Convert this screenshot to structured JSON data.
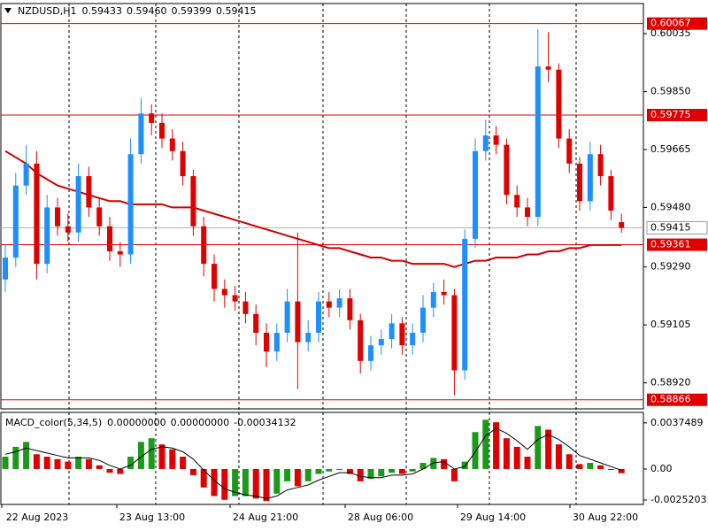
{
  "chart_data": {
    "type": "candlestick",
    "symbol": "NZDUSD,H1",
    "readout": [
      0.59433,
      {
        "value": 0.5946,
        "label": "0.59460"
      },
      0.59399,
      0.59415
    ],
    "up_color": "#1e8fff",
    "down_color": "#e00000",
    "open": [
      0.5925,
      0.5932,
      0.5955,
      0.5962,
      0.593,
      0.5948,
      0.5942,
      0.594,
      0.5958,
      0.5948,
      0.5942,
      0.5934,
      0.5933,
      0.5965,
      0.5978,
      0.5975,
      0.597,
      0.5966,
      0.5958,
      0.5942,
      0.593,
      0.5922,
      0.592,
      0.5918,
      0.5914,
      0.5908,
      0.5902,
      0.5908,
      0.5918,
      0.5905,
      0.5908,
      0.5918,
      0.5916,
      0.5919,
      0.5912,
      0.5899,
      0.5904,
      0.5906,
      0.5911,
      0.5904,
      0.5908,
      0.5916,
      0.5921,
      0.592,
      0.5896,
      0.5938,
      0.5966,
      0.5971,
      0.5968,
      0.5952,
      0.5948,
      0.5945,
      0.5993,
      0.5992,
      0.597,
      0.5962,
      0.595,
      0.5965,
      0.5958,
      0.59433
    ],
    "high": [
      0.5936,
      0.5959,
      0.5968,
      0.5966,
      0.5952,
      0.5951,
      0.5946,
      0.5962,
      0.5961,
      0.5951,
      0.5945,
      0.5937,
      0.597,
      0.5983,
      0.5981,
      0.5978,
      0.5973,
      0.5969,
      0.596,
      0.5945,
      0.5933,
      0.5925,
      0.5923,
      0.5921,
      0.5917,
      0.5911,
      0.5911,
      0.5922,
      0.594,
      0.5912,
      0.5921,
      0.5921,
      0.5922,
      0.5922,
      0.5914,
      0.5907,
      0.5909,
      0.5914,
      0.5913,
      0.5911,
      0.592,
      0.5924,
      0.5925,
      0.5922,
      0.5941,
      0.597,
      0.5976,
      0.5974,
      0.597,
      0.5955,
      0.5951,
      0.6005,
      0.6004,
      0.5994,
      0.5973,
      0.5964,
      0.5969,
      0.5968,
      0.596,
      0.5946
    ],
    "low": [
      0.5921,
      0.5929,
      0.5952,
      0.5925,
      0.5927,
      0.5939,
      0.5937,
      0.5937,
      0.5945,
      0.5939,
      0.5931,
      0.5929,
      0.593,
      0.5962,
      0.5971,
      0.5967,
      0.5963,
      0.5955,
      0.5939,
      0.5926,
      0.5918,
      0.5916,
      0.5915,
      0.5911,
      0.5904,
      0.5897,
      0.5899,
      0.5905,
      0.589,
      0.5902,
      0.5905,
      0.5913,
      0.5913,
      0.5909,
      0.5895,
      0.5896,
      0.5901,
      0.5903,
      0.5901,
      0.5901,
      0.5905,
      0.5913,
      0.5917,
      0.5888,
      0.5893,
      0.5935,
      0.5963,
      0.5965,
      0.5949,
      0.5945,
      0.5942,
      0.5942,
      0.5988,
      0.5967,
      0.5959,
      0.5947,
      0.5947,
      0.5955,
      0.5944,
      0.59399
    ],
    "close": [
      0.5932,
      0.5955,
      0.5962,
      0.593,
      0.5948,
      0.5942,
      0.594,
      0.5958,
      0.5948,
      0.5942,
      0.5934,
      0.5933,
      0.5965,
      0.5978,
      0.5975,
      0.597,
      0.5966,
      0.5958,
      0.5942,
      0.593,
      0.5922,
      0.592,
      0.5918,
      0.5914,
      0.5908,
      0.5902,
      0.5908,
      0.5918,
      0.5905,
      0.5908,
      0.5918,
      0.5916,
      0.5919,
      0.5912,
      0.5899,
      0.5904,
      0.5906,
      0.5911,
      0.5904,
      0.5908,
      0.5916,
      0.5921,
      0.592,
      0.5896,
      0.5938,
      0.5966,
      0.5971,
      0.5968,
      0.5952,
      0.5948,
      0.5945,
      0.5993,
      0.5992,
      0.597,
      0.5962,
      0.595,
      0.5965,
      0.5958,
      0.5947,
      0.59415
    ],
    "ma": {
      "color": "#d00000",
      "values": [
        0.5966,
        0.5964,
        0.5962,
        0.5959,
        0.5957,
        0.5955,
        0.5954,
        0.5953,
        0.5952,
        0.5951,
        0.595,
        0.595,
        0.5949,
        0.5949,
        0.5949,
        0.5949,
        0.5948,
        0.5948,
        0.5948,
        0.5947,
        0.5946,
        0.5945,
        0.5944,
        0.5943,
        0.5942,
        0.5941,
        0.594,
        0.5939,
        0.5938,
        0.5937,
        0.5936,
        0.5935,
        0.5935,
        0.5934,
        0.5933,
        0.5932,
        0.5932,
        0.5931,
        0.5931,
        0.593,
        0.593,
        0.593,
        0.593,
        0.5929,
        0.593,
        0.5931,
        0.5931,
        0.5932,
        0.5932,
        0.5932,
        0.5933,
        0.5933,
        0.5934,
        0.5934,
        0.5935,
        0.5935,
        0.5936,
        0.5936,
        0.5936,
        0.5936
      ]
    },
    "levels": [
      0.60067,
      0.59775,
      0.59361,
      0.58866
    ],
    "level_color": "#e00000",
    "ylim": [
      0.58837,
      0.60131
    ],
    "yticks": [
      0.60035,
      {
        "value": 0.5985,
        "label": "0.59850"
      },
      0.59665,
      {
        "value": 0.5948,
        "label": "0.59480"
      },
      {
        "value": 0.5929,
        "label": "0.59290"
      },
      0.59105,
      {
        "value": 0.5892,
        "label": "0.58920"
      }
    ],
    "x_labels": [
      "22 Aug 2023",
      "23 Aug 13:00",
      "24 Aug 21:00",
      "28 Aug 06:00",
      "29 Aug 14:00",
      "30 Aug 22:00"
    ],
    "macd": {
      "title": "MACD_color(5,34,5)",
      "readout": [
        {
          "value": 0,
          "label": "0.00000000"
        },
        {
          "value": 0,
          "label": "0.00000000"
        },
        -0.00034132
      ],
      "up_color": "#1a9a1a",
      "down_color": "#e00000",
      "signal_color": "#000000",
      "histogram": [
        0.001,
        0.0018,
        0.0022,
        0.0012,
        0.001,
        0.0008,
        0.0006,
        0.001,
        0.0008,
        0.0003,
        -0.0003,
        -0.0004,
        0.001,
        0.0022,
        0.0025,
        0.002,
        0.0016,
        0.001,
        -0.0005,
        -0.0015,
        -0.0022,
        -0.0025,
        -0.0022,
        -0.0022,
        -0.0024,
        -0.0026,
        -0.002,
        -0.001,
        -0.0014,
        -0.001,
        -0.0004,
        -0.0002,
        0.0,
        -0.0004,
        -0.001,
        -0.0008,
        -0.0006,
        -0.0003,
        -0.0004,
        -0.0002,
        0.0005,
        0.0009,
        0.0008,
        -0.001,
        0.0006,
        0.003,
        0.004,
        0.0038,
        0.0025,
        0.0018,
        0.001,
        0.0035,
        0.0032,
        0.002,
        0.0012,
        0.0004,
        0.0005,
        0.0003,
        0.0,
        -0.00034132
      ],
      "signal": [
        0.0012,
        0.0014,
        0.0017,
        0.0015,
        0.0013,
        0.0011,
        0.0009,
        0.0009,
        0.0009,
        0.0007,
        0.0003,
        0.0,
        0.0003,
        0.001,
        0.0016,
        0.0018,
        0.0017,
        0.0014,
        0.0008,
        -0.0001,
        -0.0009,
        -0.0016,
        -0.0019,
        -0.0021,
        -0.0022,
        -0.0024,
        -0.0022,
        -0.0017,
        -0.0015,
        -0.0013,
        -0.0009,
        -0.0006,
        -0.0003,
        -0.0003,
        -0.0006,
        -0.0007,
        -0.0007,
        -0.0005,
        -0.0005,
        -0.0004,
        0.0,
        0.0005,
        0.0006,
        0.0,
        0.0002,
        0.0014,
        0.0027,
        0.0033,
        0.0029,
        0.0023,
        0.0016,
        0.0024,
        0.0028,
        0.0024,
        0.0018,
        0.0011,
        0.0008,
        0.0005,
        0.0002,
        -0.0001
      ],
      "ylim": [
        -0.00288,
        0.0046
      ],
      "yticks": [
        0.0037489,
        {
          "value": 0,
          "label": "0.00"
        },
        -0.0025203
      ]
    }
  }
}
